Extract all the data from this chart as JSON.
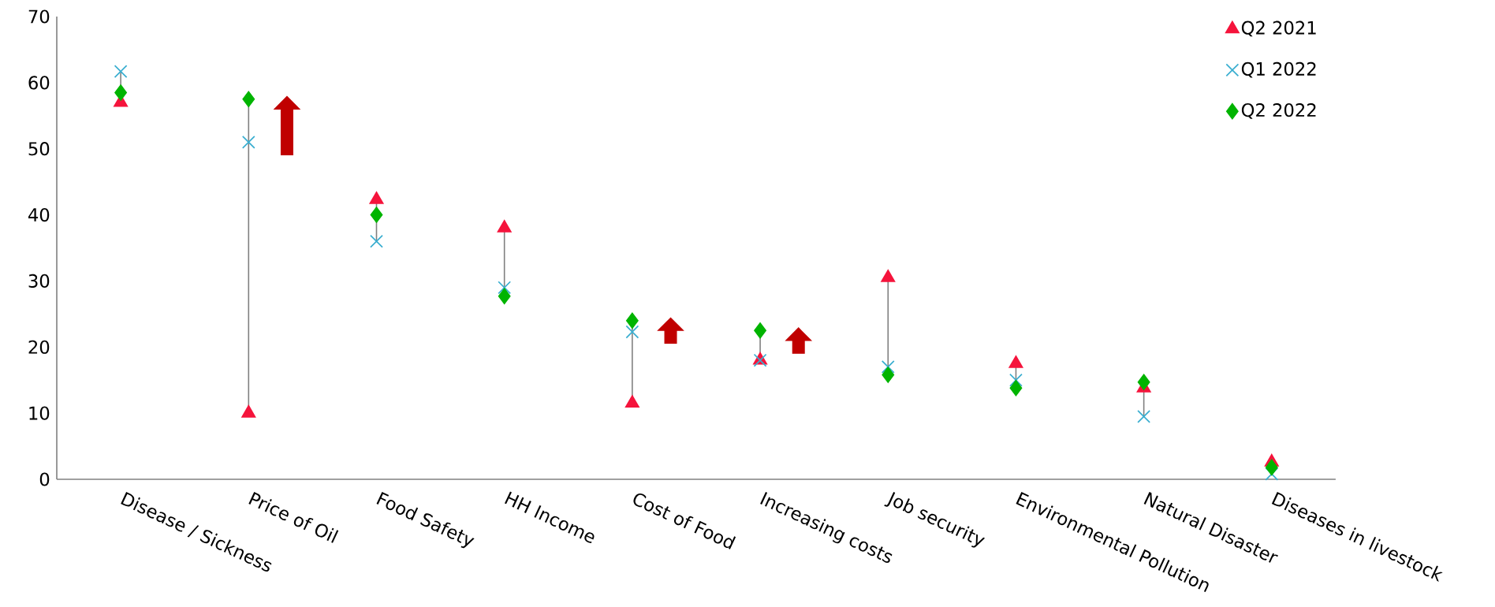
{
  "chart_data": {
    "type": "scatter",
    "categories": [
      "Disease / Sickness",
      "Price of Oil",
      "Food Safety",
      "HH Income",
      "Cost of Food",
      "Increasing costs",
      "Job security",
      "Environmental Pollution",
      "Natural Disaster",
      "Diseases in livestock"
    ],
    "series": [
      {
        "name": "Q2 2021",
        "color": "#f5143c",
        "marker": "triangle",
        "values": [
          57,
          10,
          42.3,
          38,
          11.5,
          18,
          30.5,
          17.5,
          13.8,
          2.6
        ]
      },
      {
        "name": "Q1 2022",
        "color": "#3aaed0",
        "marker": "cross",
        "values": [
          61.7,
          51,
          36,
          29,
          22.3,
          18,
          17,
          15,
          9.5,
          0.8
        ]
      },
      {
        "name": "Q2 2022",
        "color": "#00b400",
        "marker": "diamond",
        "values": [
          58.5,
          57.5,
          40,
          27.7,
          24,
          22.5,
          15.8,
          13.8,
          14.7,
          1.8
        ]
      }
    ],
    "ylim": [
      0,
      70
    ],
    "yticks": [
      0,
      10,
      20,
      30,
      40,
      50,
      60,
      70
    ],
    "legend": "top right"
  }
}
